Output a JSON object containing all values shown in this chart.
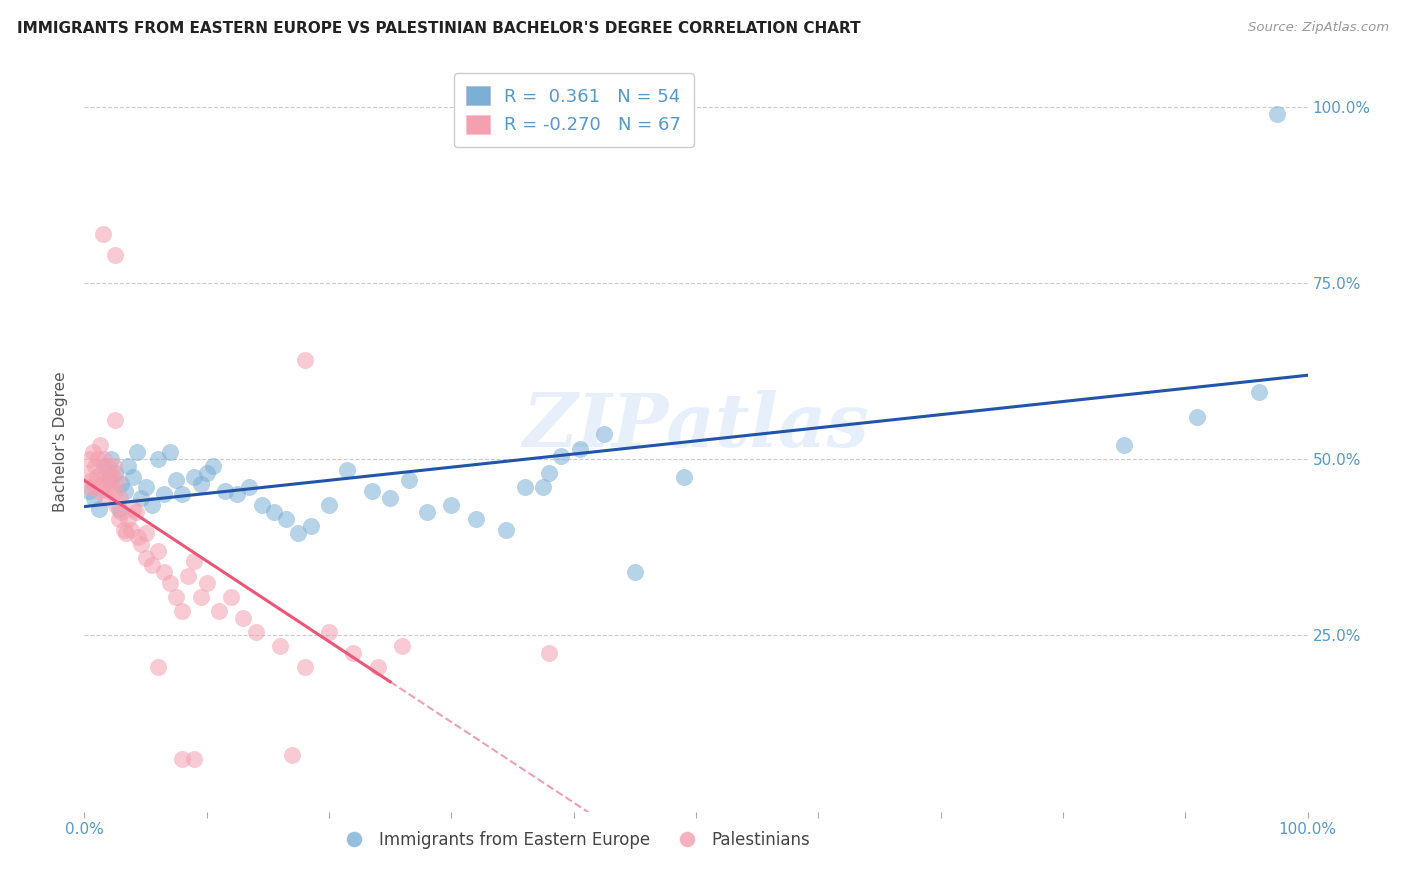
{
  "title": "IMMIGRANTS FROM EASTERN EUROPE VS PALESTINIAN BACHELOR'S DEGREE CORRELATION CHART",
  "source": "Source: ZipAtlas.com",
  "ylabel": "Bachelor's Degree",
  "legend_label1": "Immigrants from Eastern Europe",
  "legend_label2": "Palestinians",
  "r1": 0.361,
  "n1": 54,
  "r2": -0.27,
  "n2": 67,
  "xlim": [
    0.0,
    1.0
  ],
  "ylim": [
    0.0,
    1.05
  ],
  "xtick_vals": [
    0.0,
    0.1,
    0.2,
    0.3,
    0.4,
    0.5,
    0.6,
    0.7,
    0.8,
    0.9,
    1.0
  ],
  "xtick_labels": [
    "0.0%",
    "",
    "",
    "",
    "",
    "",
    "",
    "",
    "",
    "",
    "100.0%"
  ],
  "ytick_vals_left": [],
  "ytick_vals_right": [
    0.0,
    0.25,
    0.5,
    0.75,
    1.0
  ],
  "ytick_labels_right": [
    "",
    "25.0%",
    "50.0%",
    "75.0%",
    "100.0%"
  ],
  "color_blue": "#7BAFD4",
  "color_pink": "#F4A0B0",
  "color_blue_line": "#2255AA",
  "color_pink_line": "#EE5577",
  "color_pink_dashed": "#F0A0B5",
  "watermark": "ZIPatlas",
  "blue_x": [
    0.004,
    0.008,
    0.012,
    0.016,
    0.02,
    0.022,
    0.025,
    0.028,
    0.03,
    0.033,
    0.036,
    0.04,
    0.043,
    0.046,
    0.05,
    0.055,
    0.06,
    0.065,
    0.07,
    0.075,
    0.08,
    0.09,
    0.095,
    0.1,
    0.105,
    0.115,
    0.125,
    0.135,
    0.145,
    0.155,
    0.165,
    0.175,
    0.185,
    0.2,
    0.215,
    0.235,
    0.25,
    0.265,
    0.28,
    0.3,
    0.32,
    0.345,
    0.36,
    0.375,
    0.39,
    0.405,
    0.425,
    0.45,
    0.49,
    0.38,
    0.85,
    0.91,
    0.96,
    0.975
  ],
  "blue_y": [
    0.455,
    0.445,
    0.43,
    0.49,
    0.47,
    0.5,
    0.48,
    0.43,
    0.465,
    0.455,
    0.49,
    0.475,
    0.51,
    0.445,
    0.46,
    0.435,
    0.5,
    0.45,
    0.51,
    0.47,
    0.45,
    0.475,
    0.465,
    0.48,
    0.49,
    0.455,
    0.45,
    0.46,
    0.435,
    0.425,
    0.415,
    0.395,
    0.405,
    0.435,
    0.485,
    0.455,
    0.445,
    0.47,
    0.425,
    0.435,
    0.415,
    0.4,
    0.46,
    0.46,
    0.505,
    0.515,
    0.535,
    0.34,
    0.475,
    0.48,
    0.52,
    0.56,
    0.595,
    0.99
  ],
  "pink_x": [
    0.002,
    0.004,
    0.005,
    0.006,
    0.007,
    0.008,
    0.009,
    0.01,
    0.011,
    0.012,
    0.013,
    0.014,
    0.015,
    0.016,
    0.017,
    0.018,
    0.019,
    0.02,
    0.021,
    0.022,
    0.023,
    0.024,
    0.025,
    0.026,
    0.027,
    0.028,
    0.029,
    0.03,
    0.032,
    0.034,
    0.036,
    0.038,
    0.04,
    0.042,
    0.044,
    0.046,
    0.05,
    0.055,
    0.06,
    0.065,
    0.07,
    0.075,
    0.08,
    0.085,
    0.09,
    0.095,
    0.1,
    0.11,
    0.12,
    0.13,
    0.14,
    0.16,
    0.18,
    0.2,
    0.22,
    0.24,
    0.26,
    0.18,
    0.015,
    0.025,
    0.38,
    0.08,
    0.17,
    0.06,
    0.025,
    0.09,
    0.05
  ],
  "pink_y": [
    0.48,
    0.46,
    0.5,
    0.47,
    0.51,
    0.46,
    0.49,
    0.475,
    0.5,
    0.455,
    0.52,
    0.48,
    0.465,
    0.5,
    0.475,
    0.445,
    0.49,
    0.455,
    0.48,
    0.465,
    0.475,
    0.49,
    0.455,
    0.435,
    0.47,
    0.415,
    0.445,
    0.425,
    0.4,
    0.395,
    0.415,
    0.4,
    0.43,
    0.425,
    0.39,
    0.38,
    0.36,
    0.35,
    0.37,
    0.34,
    0.325,
    0.305,
    0.285,
    0.335,
    0.355,
    0.305,
    0.325,
    0.285,
    0.305,
    0.275,
    0.255,
    0.235,
    0.205,
    0.255,
    0.225,
    0.205,
    0.235,
    0.64,
    0.82,
    0.79,
    0.225,
    0.075,
    0.08,
    0.205,
    0.555,
    0.075,
    0.395
  ]
}
